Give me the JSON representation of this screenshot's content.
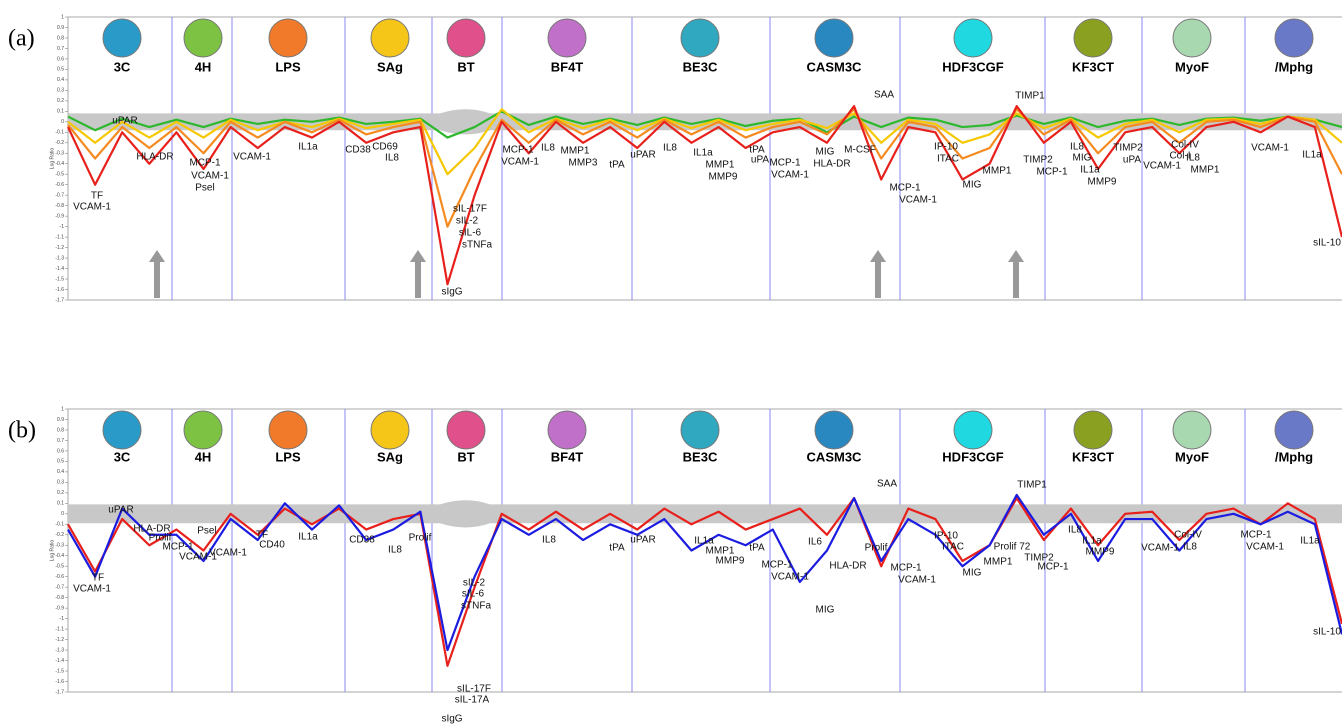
{
  "chart_data": [
    {
      "type": "line",
      "panel_label": "(a)",
      "y_label": "Log Ratio",
      "systems": [
        "3C",
        "4H",
        "LPS",
        "SAg",
        "BT",
        "BF4T",
        "BE3C",
        "CASM3C",
        "HDF3CGF",
        "KF3CT",
        "MyoF",
        "/Mphg"
      ],
      "ylim": [
        -1.7,
        1.0
      ],
      "yticks": [
        1,
        0.9,
        0.8,
        0.7,
        0.6,
        0.5,
        0.4,
        0.3,
        0.2,
        0.1,
        0,
        -0.1,
        -0.2,
        -0.3,
        -0.4,
        -0.5,
        -0.6,
        -0.7,
        -0.8,
        -0.9,
        -1,
        -1.1,
        -1.2,
        -1.3,
        -1.4,
        -1.5,
        -1.6,
        -1.7
      ],
      "series": [
        {
          "color": "#2db82d",
          "values": [
            0.05,
            -0.08,
            0.03,
            -0.05,
            0.02,
            -0.05,
            0.03,
            -0.02,
            0.02,
            0,
            0.04,
            -0.02,
            0,
            0.03,
            -0.15,
            -0.05,
            0.1,
            -0.03,
            0.05,
            -0.02,
            0.03,
            -0.03,
            0.04,
            -0.02,
            0.03,
            -0.04,
            0.01,
            0.03,
            -0.1,
            0.05,
            -0.05,
            0.04,
            0.02,
            -0.05,
            -0.03,
            0.06,
            -0.02,
            0.04,
            -0.05,
            0.01,
            0.03,
            -0.03,
            0.03,
            0.04,
            0.01,
            0.05,
            0.02,
            -0.05
          ]
        },
        {
          "color": "#f5c800",
          "values": [
            0,
            -0.2,
            0,
            -0.15,
            0,
            -0.15,
            0.02,
            -0.08,
            0,
            -0.05,
            0.03,
            -0.06,
            -0.02,
            0.02,
            -0.5,
            -0.25,
            0.12,
            -0.1,
            0.03,
            -0.06,
            0.02,
            -0.08,
            0.03,
            -0.06,
            0.02,
            -0.08,
            -0.02,
            0.02,
            -0.06,
            0.08,
            -0.2,
            0.02,
            -0.02,
            -0.2,
            -0.12,
            0.08,
            -0.06,
            0.03,
            -0.15,
            -0.02,
            0.02,
            -0.1,
            0.02,
            0.03,
            -0.02,
            0.05,
            0.02,
            -0.2
          ]
        },
        {
          "color": "#f58a1f",
          "values": [
            -0.03,
            -0.35,
            -0.05,
            -0.25,
            -0.05,
            -0.3,
            0,
            -0.15,
            0,
            -0.1,
            0.02,
            -0.12,
            -0.05,
            0,
            -1.0,
            -0.45,
            0.02,
            -0.2,
            0.02,
            -0.12,
            0,
            -0.15,
            0.02,
            -0.12,
            0,
            -0.15,
            -0.05,
            0,
            -0.12,
            0.12,
            -0.35,
            0,
            -0.05,
            -0.35,
            -0.25,
            0.12,
            -0.12,
            0.02,
            -0.3,
            -0.05,
            0,
            -0.2,
            0,
            0.02,
            -0.05,
            0.05,
            0,
            -0.5
          ]
        },
        {
          "color": "#e8201c",
          "values": [
            -0.05,
            -0.6,
            -0.1,
            -0.4,
            -0.1,
            -0.45,
            -0.05,
            -0.25,
            -0.05,
            -0.15,
            0,
            -0.2,
            -0.1,
            -0.05,
            -1.55,
            -0.7,
            0,
            -0.3,
            0,
            -0.2,
            -0.05,
            -0.25,
            0,
            -0.2,
            -0.05,
            -0.25,
            -0.1,
            -0.05,
            -0.2,
            0.15,
            -0.55,
            -0.05,
            -0.1,
            -0.55,
            -0.4,
            0.15,
            -0.2,
            0,
            -0.45,
            -0.1,
            -0.05,
            -0.3,
            -0.05,
            0,
            -0.1,
            0.05,
            -0.05,
            -1.1
          ]
        }
      ],
      "annotations": [
        "uPAR",
        "TF",
        "VCAM-1",
        "HLA-DR",
        "MCP-1",
        "VCAM-1",
        "Psel",
        "VCAM-1",
        "IL1a",
        "CD38",
        "CD69",
        "IL8",
        "sIL-17F",
        "sIL-2",
        "sIL-6",
        "sTNFa",
        "sIgG",
        "MCP-1",
        "VCAM-1",
        "IL8",
        "MMP1",
        "MMP3",
        "tPA",
        "uPAR",
        "IL8",
        "IL1a",
        "MMP1",
        "MMP9",
        "tPA",
        "uPA",
        "MCP-1",
        "VCAM-1",
        "MIG",
        "HLA-DR",
        "M-CSF",
        "SAA",
        "MCP-1",
        "VCAM-1",
        "IP-10",
        "ITAC",
        "MIG",
        "MMP1",
        "TIMP1",
        "TIMP2",
        "MCP-1",
        "IL8",
        "MIG",
        "IL1a",
        "MMP9",
        "TIMP2",
        "uPA",
        "Col-IV",
        "Col-I",
        "IL8",
        "VCAM-1",
        "MMP1",
        "VCAM-1",
        "IL1a",
        "sIL-10"
      ]
    },
    {
      "type": "line",
      "panel_label": "(b)",
      "y_label": "Log Ratio",
      "systems": [
        "3C",
        "4H",
        "LPS",
        "SAg",
        "BT",
        "BF4T",
        "BE3C",
        "CASM3C",
        "HDF3CGF",
        "KF3CT",
        "MyoF",
        "/Mphg"
      ],
      "ylim": [
        -1.7,
        1.0
      ],
      "yticks": [
        1,
        0.9,
        0.8,
        0.7,
        0.6,
        0.5,
        0.4,
        0.3,
        0.2,
        0.1,
        0,
        -0.1,
        -0.2,
        -0.3,
        -0.4,
        -0.5,
        -0.6,
        -0.7,
        -0.8,
        -0.9,
        -1,
        -1.1,
        -1.2,
        -1.3,
        -1.4,
        -1.5,
        -1.6,
        -1.7
      ],
      "series": [
        {
          "color": "#e8201c",
          "values": [
            -0.1,
            -0.55,
            -0.05,
            -0.3,
            -0.15,
            -0.35,
            0,
            -0.2,
            0.05,
            -0.1,
            0.05,
            -0.15,
            -0.05,
            0,
            -1.45,
            -0.7,
            0,
            -0.15,
            0.02,
            -0.15,
            0,
            -0.15,
            0.05,
            -0.1,
            0.02,
            -0.15,
            -0.05,
            0.05,
            -0.2,
            0.15,
            -0.5,
            0.05,
            -0.05,
            -0.45,
            -0.3,
            0.15,
            -0.25,
            0.05,
            -0.3,
            0,
            0.02,
            -0.25,
            0,
            0.05,
            -0.1,
            0.1,
            -0.05,
            -1.05
          ]
        },
        {
          "color": "#1c1ce0",
          "values": [
            -0.15,
            -0.6,
            0.05,
            -0.2,
            -0.2,
            -0.45,
            -0.05,
            -0.25,
            0.1,
            -0.15,
            0.08,
            -0.25,
            -0.15,
            0.02,
            -1.3,
            -0.6,
            -0.05,
            -0.2,
            -0.05,
            -0.25,
            -0.1,
            -0.2,
            -0.05,
            -0.35,
            -0.2,
            -0.3,
            -0.15,
            -0.65,
            -0.35,
            0.15,
            -0.45,
            -0.05,
            -0.2,
            -0.5,
            -0.3,
            0.18,
            -0.2,
            0,
            -0.45,
            -0.05,
            -0.05,
            -0.35,
            -0.05,
            0,
            -0.1,
            0.02,
            -0.1,
            -1.15
          ]
        }
      ],
      "annotations": [
        "TF",
        "VCAM-1",
        "uPAR",
        "HLA-DR",
        "Prolif",
        "MCP-1",
        "Psel",
        "VCAM-1",
        "TF",
        "CD40",
        "VCAM-1",
        "IL1a",
        "CD38",
        "IL8",
        "Prolif",
        "sIL-2",
        "sIL-6",
        "sTNFa",
        "sIL-17F",
        "sIL-17A",
        "sIgG",
        "IL8",
        "tPA",
        "uPAR",
        "IL1a",
        "MMP1",
        "MMP9",
        "tPA",
        "MCP-1",
        "VCAM-1",
        "IL6",
        "HLA-DR",
        "MIG",
        "Prolif",
        "SAA",
        "MCP-1",
        "VCAM-1",
        "IP-10",
        "ITAC",
        "MIG",
        "MMP1",
        "Prolif 72",
        "TIMP2",
        "MCP-1",
        "TIMP1",
        "IL8",
        "IL1a",
        "MMP9",
        "VCAM-1",
        "Col-IV",
        "IL8",
        "MCP-1",
        "VCAM-1",
        "IL1a",
        "sIL-10"
      ]
    }
  ]
}
